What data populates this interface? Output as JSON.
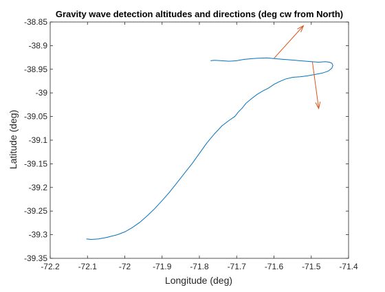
{
  "chart_data": {
    "type": "line",
    "title": "Gravity wave detection altitudes and directions (deg cw from North)",
    "xlabel": "Longitude (deg)",
    "ylabel": "Latitude (deg)",
    "xlim": [
      -72.2,
      -71.4
    ],
    "ylim": [
      -39.35,
      -38.85
    ],
    "xticks": [
      -72.2,
      -72.1,
      -72,
      -71.9,
      -71.8,
      -71.7,
      -71.6,
      -71.5,
      -71.4
    ],
    "xtick_labels": [
      "-72.2",
      "-72.1",
      "-72",
      "-71.9",
      "-71.8",
      "-71.7",
      "-71.6",
      "-71.5",
      "-71.4"
    ],
    "yticks": [
      -39.35,
      -39.3,
      -39.25,
      -39.2,
      -39.15,
      -39.1,
      -39.05,
      -39,
      -38.95,
      -38.9,
      -38.85
    ],
    "ytick_labels": [
      "-39.35",
      "-39.3",
      "-39.25",
      "-39.2",
      "-39.15",
      "-39.1",
      "-39.05",
      "-39",
      "-38.95",
      "-38.9",
      "-38.85"
    ],
    "grid": false,
    "box": true,
    "series": [
      {
        "color": "#0072BD",
        "x": [
          -72.103,
          -72.09,
          -72.07,
          -72.05,
          -72.02,
          -72.0,
          -71.98,
          -71.96,
          -71.94,
          -71.92,
          -71.9,
          -71.88,
          -71.86,
          -71.84,
          -71.82,
          -71.8,
          -71.78,
          -71.76,
          -71.74,
          -71.72,
          -71.705,
          -71.695,
          -71.685,
          -71.675,
          -71.66,
          -71.645,
          -71.63,
          -71.615,
          -71.6,
          -71.585,
          -71.57,
          -71.55,
          -71.53,
          -71.51,
          -71.49,
          -71.47,
          -71.455,
          -71.445,
          -71.442,
          -71.445,
          -71.452,
          -71.462,
          -71.48,
          -71.5,
          -71.53,
          -71.56,
          -71.59,
          -71.62,
          -71.65,
          -71.68,
          -71.7,
          -71.72,
          -71.74,
          -71.76,
          -71.77
        ],
        "y": [
          -39.309,
          -39.31,
          -39.309,
          -39.306,
          -39.3,
          -39.294,
          -39.285,
          -39.274,
          -39.26,
          -39.245,
          -39.228,
          -39.21,
          -39.19,
          -39.17,
          -39.15,
          -39.128,
          -39.106,
          -39.087,
          -39.07,
          -39.058,
          -39.05,
          -39.04,
          -39.032,
          -39.022,
          -39.012,
          -39.003,
          -38.996,
          -38.99,
          -38.982,
          -38.976,
          -38.971,
          -38.967,
          -38.966,
          -38.964,
          -38.961,
          -38.958,
          -38.954,
          -38.948,
          -38.942,
          -38.937,
          -38.935,
          -38.934,
          -38.935,
          -38.934,
          -38.932,
          -38.93,
          -38.928,
          -38.926,
          -38.927,
          -38.929,
          -38.932,
          -38.933,
          -38.932,
          -38.931,
          -38.932
        ]
      }
    ],
    "arrows": [
      {
        "color": "#D95319",
        "x": -71.6,
        "y": -38.927,
        "dx": 0.079,
        "dy": 0.069
      },
      {
        "color": "#D95319",
        "x": -71.497,
        "y": -38.934,
        "dx": 0.017,
        "dy": -0.099
      }
    ]
  }
}
